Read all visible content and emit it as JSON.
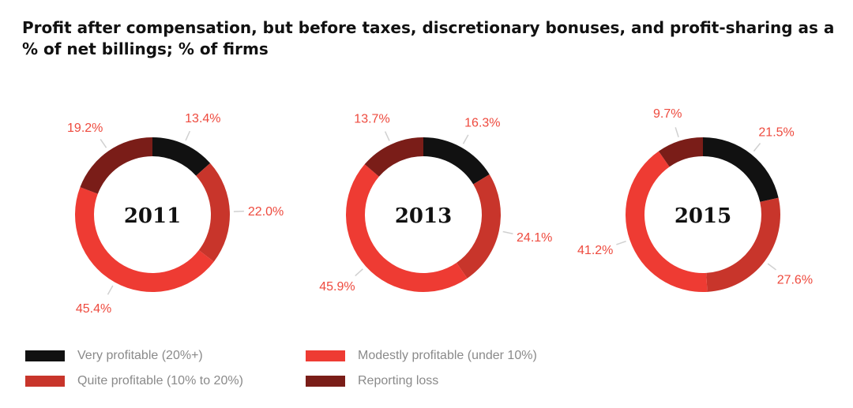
{
  "chart_data": {
    "type": "pie",
    "title": "Profit after compensation, but before taxes, discretionary bonuses, and profit-sharing as a % of net billings; % of firms",
    "categories": [
      "Very profitable (20%+)",
      "Quite profitable (10% to 20%)",
      "Modestly profitable (under 10%)",
      "Reporting loss"
    ],
    "colors": [
      "#111111",
      "#c8352b",
      "#ee3b33",
      "#7a1d18"
    ],
    "series": [
      {
        "name": "2011",
        "values": [
          13.4,
          22.0,
          45.4,
          19.2
        ],
        "labels": [
          "13.4%",
          "22.0%",
          "45.4%",
          "19.2%"
        ]
      },
      {
        "name": "2013",
        "values": [
          16.3,
          24.1,
          45.9,
          13.7
        ],
        "labels": [
          "16.3%",
          "24.1%",
          "45.9%",
          "13.7%"
        ]
      },
      {
        "name": "2015",
        "values": [
          21.5,
          27.6,
          41.2,
          9.7
        ],
        "labels": [
          "21.5%",
          "27.6%",
          "41.2%",
          "9.7%"
        ]
      }
    ],
    "legend_position": "bottom-left"
  },
  "style": {
    "label_color": "#ee4a3e",
    "leader_color": "#d0d0d0",
    "legend_text_color": "#8a8a8a"
  }
}
